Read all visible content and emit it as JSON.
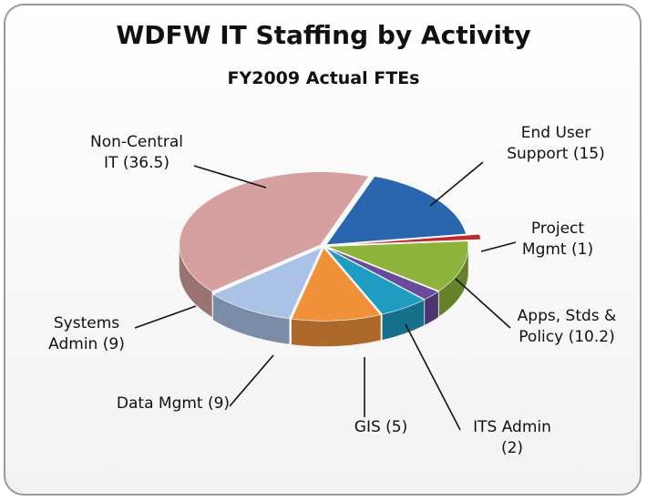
{
  "chart_data": {
    "type": "pie",
    "title": "WDFW IT Staffing by Activity",
    "subtitle": "FY2009 Actual FTEs",
    "categories": [
      "End User Support (15)",
      "Project Mgmt (1)",
      "Apps, Stds & Policy (10.2)",
      "ITS Admin (2)",
      "GIS (5)",
      "Data Mgmt (9)",
      "Systems Admin (9)",
      "Non-Central IT (36.5)"
    ],
    "values": [
      15,
      1,
      10.2,
      2,
      5,
      9,
      9,
      36.5
    ],
    "colors": [
      "#2a66ad",
      "#c0282d",
      "#8db33a",
      "#6a4a9a",
      "#1f9cc2",
      "#f0913a",
      "#a9c2e6",
      "#d6a0a0"
    ]
  }
}
